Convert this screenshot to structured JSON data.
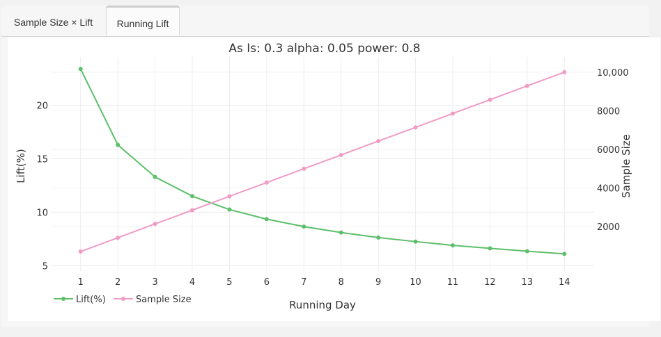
{
  "tabs": [
    {
      "label": "Sample Size × Lift",
      "active": false
    },
    {
      "label": "Running Lift",
      "active": true
    }
  ],
  "chart_data": {
    "type": "line",
    "title": "As Is: 0.3 alpha: 0.05 power: 0.8",
    "xlabel": "Running Day",
    "ylabel_left": "Lift(%)",
    "ylabel_right": "Sample Size",
    "x": [
      1,
      2,
      3,
      4,
      5,
      6,
      7,
      8,
      9,
      10,
      11,
      12,
      13,
      14
    ],
    "x_ticks": [
      "1",
      "2",
      "3",
      "4",
      "5",
      "6",
      "7",
      "8",
      "9",
      "10",
      "11",
      "12",
      "13",
      "14"
    ],
    "y_left_ticks": [
      "5",
      "10",
      "15",
      "20"
    ],
    "y_right_ticks": [
      "2000",
      "4000",
      "6000",
      "8000",
      "10,000"
    ],
    "y_left_range": [
      4.5,
      24.0
    ],
    "y_right_range": [
      -300,
      10500
    ],
    "grid": true,
    "legend_position": "bottom-left",
    "series": [
      {
        "name": "Lift(%)",
        "axis": "left",
        "color": "#5cbf6a",
        "values": [
          23.4,
          16.3,
          13.3,
          11.5,
          10.25,
          9.35,
          8.65,
          8.1,
          7.63,
          7.25,
          6.9,
          6.62,
          6.35,
          6.1
        ]
      },
      {
        "name": "Sample Size",
        "axis": "right",
        "color": "#f19bc6",
        "values": [
          710,
          1420,
          2140,
          2850,
          3570,
          4280,
          5000,
          5710,
          6430,
          7140,
          7860,
          8570,
          9290,
          10000
        ]
      }
    ]
  }
}
